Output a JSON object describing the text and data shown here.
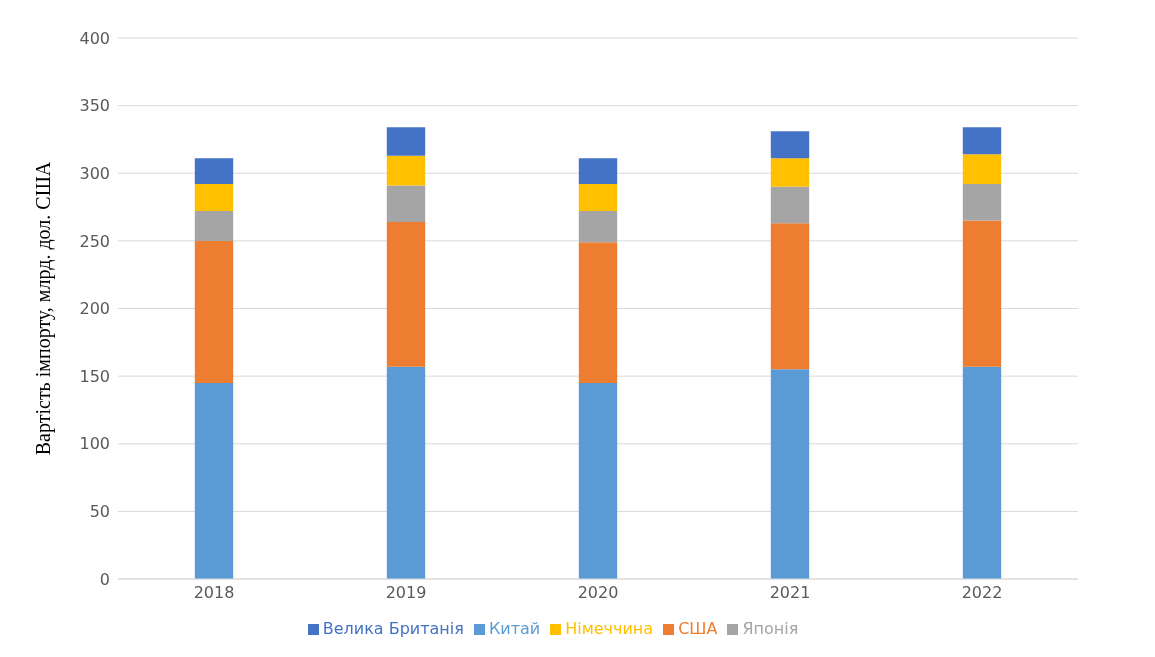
{
  "chart_data": {
    "type": "bar",
    "stacked": true,
    "ylabel": "Вартість імпорту, млрд. дол. США",
    "categories": [
      "2018",
      "2019",
      "2020",
      "2021",
      "2022"
    ],
    "series": [
      {
        "name": "Китай",
        "color": "#5b9bd5",
        "values": [
          145,
          157,
          145,
          155,
          157
        ]
      },
      {
        "name": "США",
        "color": "#ed7d31",
        "values": [
          105,
          107,
          104,
          108,
          108
        ]
      },
      {
        "name": "Японія",
        "color": "#a5a5a5",
        "values": [
          22,
          27,
          23,
          27,
          27
        ]
      },
      {
        "name": "Німеччина",
        "color": "#ffc000",
        "values": [
          20,
          22,
          20,
          21,
          22
        ]
      },
      {
        "name": "Велика Британія",
        "color": "#4472c4",
        "values": [
          19,
          21,
          19,
          20,
          20
        ]
      }
    ],
    "ylim": [
      0,
      400
    ],
    "yticks": [
      0,
      50,
      100,
      150,
      200,
      250,
      300,
      350,
      400
    ],
    "grid": "y",
    "legend": "bottom"
  }
}
